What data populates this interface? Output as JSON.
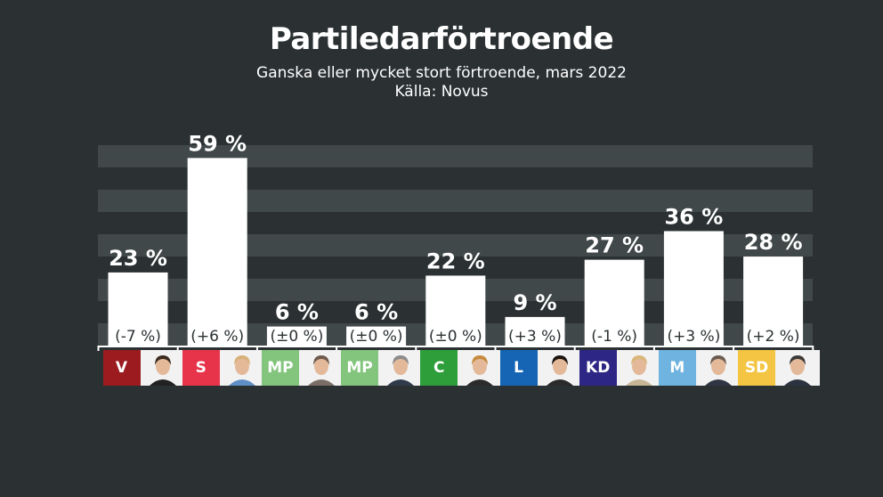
{
  "header": {
    "title": "Partiledarförtroende",
    "subtitle_line1": "Ganska eller mycket stort förtroende, mars 2022",
    "subtitle_line2": "Källa: Novus"
  },
  "chart_data": {
    "type": "bar",
    "categories": [
      "V",
      "S",
      "MP",
      "MP",
      "C",
      "L",
      "KD",
      "M",
      "SD"
    ],
    "values": [
      23,
      59,
      6,
      6,
      22,
      9,
      27,
      36,
      28
    ],
    "value_labels": [
      "23 %",
      "59 %",
      "6 %",
      "6 %",
      "22 %",
      "9 %",
      "27 %",
      "36 %",
      "28 %"
    ],
    "change_labels": [
      "(-7 %)",
      "(+6 %)",
      "(±0 %)",
      "(±0 %)",
      "(±0 %)",
      "(+3 %)",
      "(-1 %)",
      "(+3 %)",
      "(+2 %)"
    ],
    "ylim": [
      0,
      60
    ],
    "grid": true,
    "colors": {
      "background": "#2b3133",
      "grid_band": "#414849",
      "bar": "#ffffff",
      "text": "#ffffff"
    },
    "party_colors": [
      "#9b1b1e",
      "#e8344a",
      "#83c57d",
      "#83c57d",
      "#2e9e3b",
      "#1565b4",
      "#2d2684",
      "#6fb3e0",
      "#f4c542"
    ],
    "party_badge_text_colors": [
      "#ffffff",
      "#ffffff",
      "#ffffff",
      "#ffffff",
      "#ffffff",
      "#ffffff",
      "#ffffff",
      "#ffffff",
      "#ffffff"
    ]
  }
}
